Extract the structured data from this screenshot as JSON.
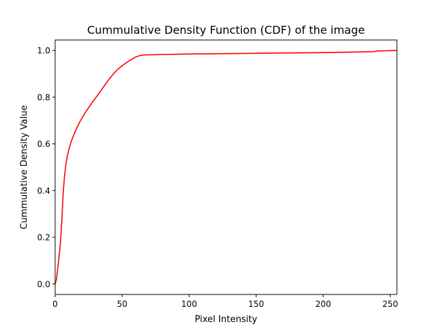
{
  "chart_data": {
    "type": "line",
    "title": "Cummulative Density Function (CDF) of the image",
    "xlabel": "Pixel Intensity",
    "ylabel": "Cummulative Density Value",
    "xlim": [
      0,
      255
    ],
    "ylim": [
      -0.045,
      1.045
    ],
    "xticks": [
      0,
      50,
      100,
      150,
      200,
      250
    ],
    "yticks": [
      0.0,
      0.2,
      0.4,
      0.6,
      0.8,
      1.0
    ],
    "ytick_labels": [
      "0.0",
      "0.2",
      "0.4",
      "0.6",
      "0.8",
      "1.0"
    ],
    "grid": false,
    "series": [
      {
        "color": "#ff0000",
        "x": [
          0,
          1,
          2,
          3,
          4,
          5,
          6,
          7,
          8,
          9,
          10,
          12,
          14,
          16,
          18,
          20,
          22,
          25,
          28,
          30,
          35,
          40,
          45,
          50,
          55,
          60,
          63,
          65,
          67,
          80,
          100,
          150,
          200,
          238,
          240,
          255
        ],
        "y": [
          0.0,
          0.02,
          0.07,
          0.12,
          0.18,
          0.27,
          0.39,
          0.46,
          0.51,
          0.545,
          0.57,
          0.61,
          0.64,
          0.665,
          0.69,
          0.71,
          0.73,
          0.755,
          0.78,
          0.795,
          0.835,
          0.875,
          0.91,
          0.935,
          0.955,
          0.972,
          0.978,
          0.98,
          0.981,
          0.983,
          0.985,
          0.988,
          0.991,
          0.995,
          0.998,
          1.0
        ]
      }
    ],
    "colors": {
      "line": "#ff0000",
      "axes": "#000000",
      "background": "#ffffff"
    }
  }
}
